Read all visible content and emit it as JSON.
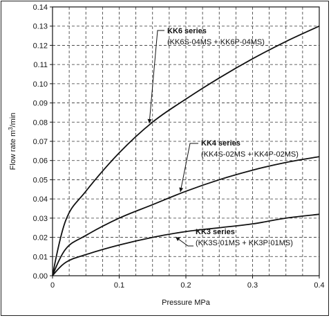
{
  "chart_data": {
    "type": "line",
    "xlabel": "Pressure MPa",
    "ylabel_main": "Flow rate m",
    "ylabel_sup": "3",
    "ylabel_tail": "/min",
    "xlim": [
      0,
      0.4
    ],
    "ylim": [
      0,
      0.14
    ],
    "x_ticks": [
      0,
      0.1,
      0.2,
      0.3,
      0.4
    ],
    "x_tick_labels": [
      "0",
      "0.1",
      "0.2",
      "0.3",
      "0.4"
    ],
    "y_ticks": [
      0,
      0.01,
      0.02,
      0.03,
      0.04,
      0.05,
      0.06,
      0.07,
      0.08,
      0.09,
      0.1,
      0.11,
      0.12,
      0.13,
      0.14
    ],
    "y_tick_labels": [
      "0.00",
      "0.01",
      "0.02",
      "0.03",
      "0.04",
      "0.05",
      "0.06",
      "0.07",
      "0.08",
      "0.09",
      "0.10",
      "0.11",
      "0.12",
      "0.13",
      "0.14"
    ],
    "grid": true,
    "series": [
      {
        "name": "KK6 series",
        "subtitle": "(KK6S-04MS + KK6P-04MS)",
        "x": [
          0,
          0.02,
          0.05,
          0.1,
          0.15,
          0.2,
          0.25,
          0.3,
          0.35,
          0.4
        ],
        "y": [
          0,
          0.029,
          0.044,
          0.064,
          0.08,
          0.092,
          0.103,
          0.113,
          0.122,
          0.13
        ]
      },
      {
        "name": "KK4 series",
        "subtitle": "(KK4S-02MS + KK4P-02MS)",
        "x": [
          0,
          0.02,
          0.05,
          0.1,
          0.15,
          0.2,
          0.25,
          0.3,
          0.35,
          0.4
        ],
        "y": [
          0,
          0.014,
          0.021,
          0.03,
          0.037,
          0.044,
          0.05,
          0.055,
          0.059,
          0.062
        ]
      },
      {
        "name": "KK3 series",
        "subtitle": "(KK3S-01MS + KK3P-01MS)",
        "x": [
          0,
          0.02,
          0.05,
          0.1,
          0.15,
          0.2,
          0.25,
          0.3,
          0.35,
          0.4
        ],
        "y": [
          0,
          0.007,
          0.011,
          0.016,
          0.02,
          0.023,
          0.025,
          0.027,
          0.03,
          0.032
        ]
      }
    ]
  }
}
